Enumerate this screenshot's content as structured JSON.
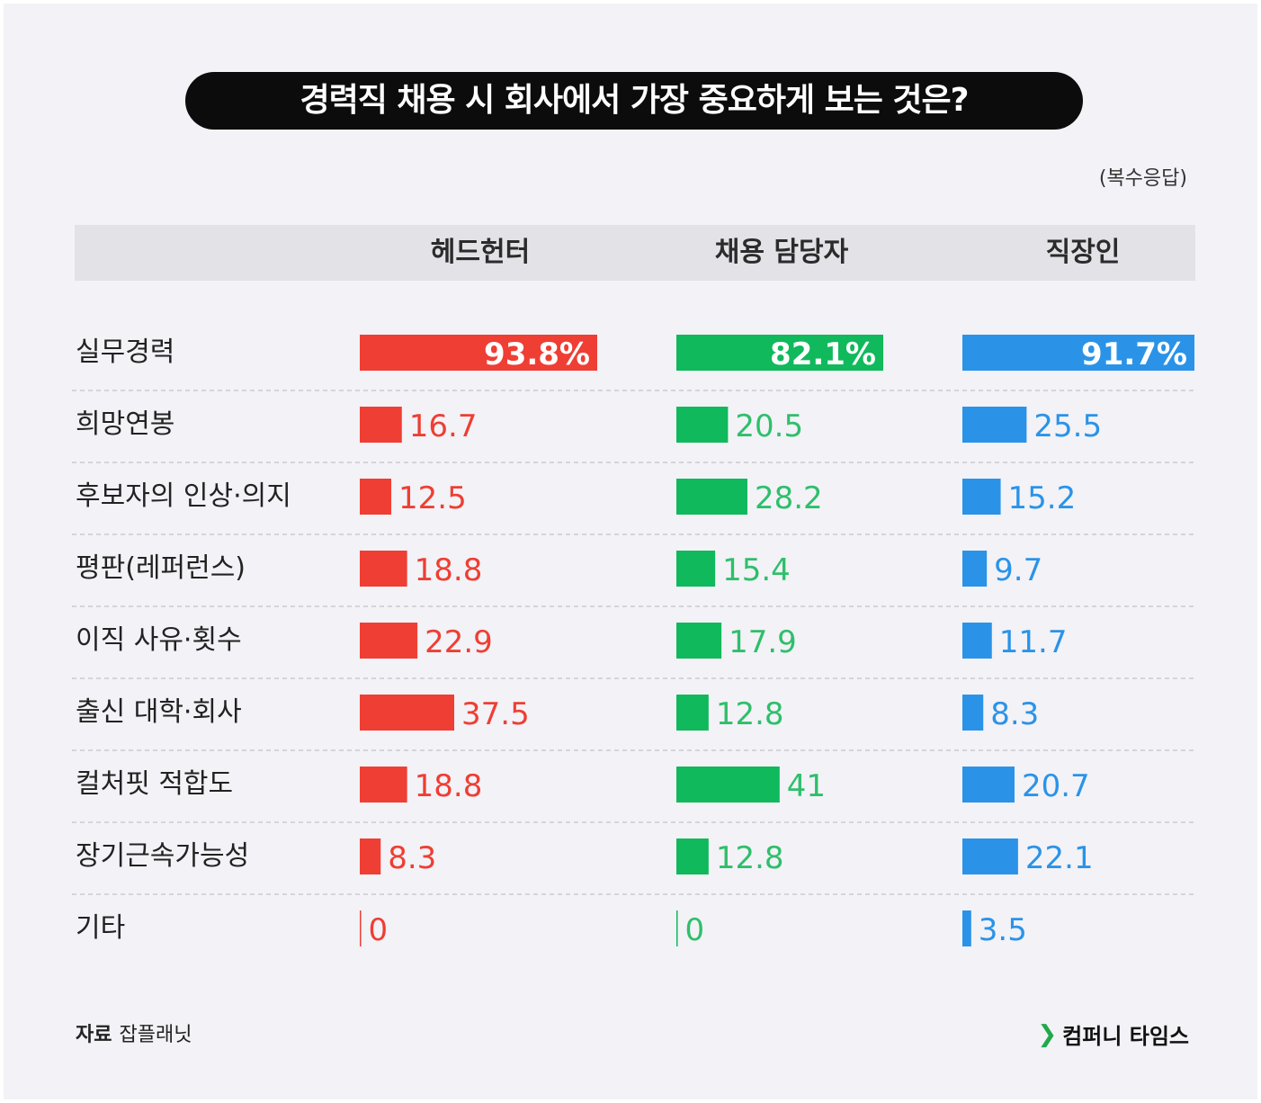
{
  "title": "경력직 채용 시 회사에서 가장 중요하게 보는 것은?",
  "note": "(복수응답)",
  "footer": {
    "source_label": "자료",
    "source_name": "잡플래닛",
    "brand": "컴퍼니 타임스"
  },
  "colors": {
    "headhunter": "#ef3e33",
    "recruiter": "#10b95b",
    "employee": "#2a93e8",
    "label_on_bar": "#ffffff",
    "text_green": "#2ebf6a"
  },
  "chart_data": {
    "type": "bar",
    "orientation": "horizontal",
    "title": "경력직 채용 시 회사에서 가장 중요하게 보는 것은?",
    "unit": "%",
    "categories": [
      "실무경력",
      "희망연봉",
      "후보자의 인상·의지",
      "평판(레퍼런스)",
      "이직 사유·횟수",
      "출신 대학·회사",
      "컬처핏 적합도",
      "장기근속가능성",
      "기타"
    ],
    "series": [
      {
        "name": "헤드헌터",
        "values": [
          93.8,
          16.7,
          12.5,
          18.8,
          22.9,
          37.5,
          18.8,
          8.3,
          0
        ],
        "labels": [
          "93.8%",
          "16.7",
          "12.5",
          "18.8",
          "22.9",
          "37.5",
          "18.8",
          "8.3",
          "0"
        ]
      },
      {
        "name": "채용 담당자",
        "values": [
          82.1,
          20.5,
          28.2,
          15.4,
          17.9,
          12.8,
          41,
          12.8,
          0
        ],
        "labels": [
          "82.1%",
          "20.5",
          "28.2",
          "15.4",
          "17.9",
          "12.8",
          "41",
          "12.8",
          "0"
        ]
      },
      {
        "name": "직장인",
        "values": [
          91.7,
          25.5,
          15.2,
          9.7,
          11.7,
          8.3,
          20.7,
          22.1,
          3.5
        ],
        "labels": [
          "91.7%",
          "25.5",
          "15.2",
          "9.7",
          "11.7",
          "8.3",
          "20.7",
          "22.1",
          "3.5"
        ]
      }
    ],
    "xlim": [
      0,
      100
    ]
  }
}
